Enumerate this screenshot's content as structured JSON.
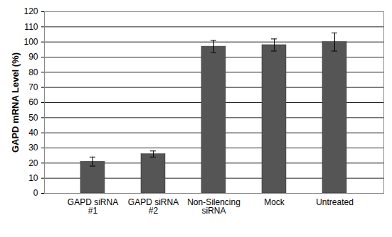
{
  "chart_data": {
    "type": "bar",
    "y_label": "GAPD mRNA Level (%)",
    "categories": [
      "GAPD siRNA #1",
      "GAPD siRNA #2",
      "Non-Silencing siRNA",
      "Mock",
      "Untreated"
    ],
    "values": [
      21,
      26,
      97,
      98,
      100
    ],
    "errors": [
      3,
      2,
      4,
      4,
      6
    ],
    "color": "#555555",
    "ylim": [
      0,
      120
    ],
    "yticks": [
      0,
      10,
      20,
      30,
      40,
      50,
      60,
      70,
      80,
      90,
      100,
      110,
      120
    ],
    "grid": true
  }
}
